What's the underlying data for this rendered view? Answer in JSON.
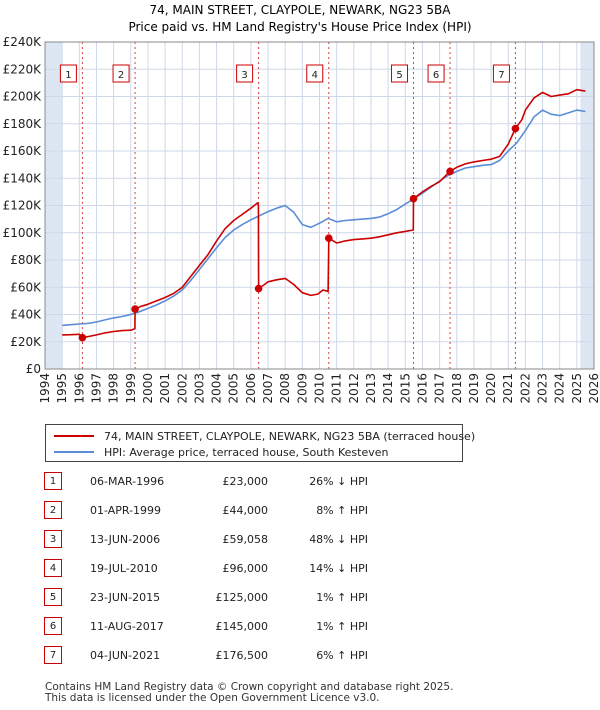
{
  "title": {
    "line1": "74, MAIN STREET, CLAYPOLE, NEWARK, NG23 5BA",
    "line2": "Price paid vs. HM Land Registry's House Price Index (HPI)"
  },
  "colors": {
    "price_paid": "#cc0000",
    "hpi": "#5b8dd6",
    "shade": "#dde7f3",
    "grid": "#cfd8e8",
    "marker_box": "#cc0000"
  },
  "chart_data": {
    "type": "line",
    "x_range": [
      1994,
      2026
    ],
    "ylim": [
      0,
      240000
    ],
    "y_ticks": [
      0,
      20000,
      40000,
      60000,
      80000,
      100000,
      120000,
      140000,
      160000,
      180000,
      200000,
      220000,
      240000
    ],
    "y_tick_labels": [
      "£0",
      "£20K",
      "£40K",
      "£60K",
      "£80K",
      "£100K",
      "£120K",
      "£140K",
      "£160K",
      "£180K",
      "£200K",
      "£220K",
      "£240K"
    ],
    "x_ticks": [
      1994,
      1995,
      1996,
      1997,
      1998,
      1999,
      2000,
      2001,
      2002,
      2003,
      2004,
      2005,
      2006,
      2007,
      2008,
      2009,
      2010,
      2011,
      2012,
      2013,
      2014,
      2015,
      2016,
      2017,
      2018,
      2019,
      2020,
      2021,
      2022,
      2023,
      2024,
      2025,
      2026
    ],
    "shaded_ranges": [
      [
        1994,
        1995
      ],
      [
        2025.2,
        2026
      ]
    ],
    "series": [
      {
        "name": "74, MAIN STREET, CLAYPOLE, NEWARK, NG23 5BA (terraced house)",
        "color": "#cc0000",
        "points": [
          [
            1995.0,
            25000
          ],
          [
            1995.5,
            25200
          ],
          [
            1996.0,
            25500
          ],
          [
            1996.18,
            23000
          ],
          [
            1996.5,
            23800
          ],
          [
            1997.0,
            25000
          ],
          [
            1997.5,
            26500
          ],
          [
            1998.0,
            27500
          ],
          [
            1998.5,
            28200
          ],
          [
            1999.0,
            28500
          ],
          [
            1999.24,
            29500
          ],
          [
            1999.25,
            44000
          ],
          [
            1999.6,
            46000
          ],
          [
            2000.0,
            47500
          ],
          [
            2000.5,
            50000
          ],
          [
            2001.0,
            52500
          ],
          [
            2001.5,
            55500
          ],
          [
            2002.0,
            60000
          ],
          [
            2002.5,
            68000
          ],
          [
            2003.0,
            76000
          ],
          [
            2003.5,
            84000
          ],
          [
            2004.0,
            94000
          ],
          [
            2004.5,
            103000
          ],
          [
            2005.0,
            109000
          ],
          [
            2005.5,
            113500
          ],
          [
            2006.0,
            118000
          ],
          [
            2006.4,
            122000
          ],
          [
            2006.44,
            120000
          ],
          [
            2006.45,
            59058
          ],
          [
            2006.8,
            62000
          ],
          [
            2007.0,
            64000
          ],
          [
            2007.5,
            65500
          ],
          [
            2008.0,
            66500
          ],
          [
            2008.5,
            62000
          ],
          [
            2009.0,
            56000
          ],
          [
            2009.5,
            54000
          ],
          [
            2009.9,
            55000
          ],
          [
            2010.2,
            58000
          ],
          [
            2010.5,
            57000
          ],
          [
            2010.54,
            96000
          ],
          [
            2011.0,
            92500
          ],
          [
            2011.5,
            94000
          ],
          [
            2012.0,
            95000
          ],
          [
            2012.5,
            95500
          ],
          [
            2013.0,
            96000
          ],
          [
            2013.5,
            97000
          ],
          [
            2014.0,
            98500
          ],
          [
            2014.5,
            100000
          ],
          [
            2015.0,
            101000
          ],
          [
            2015.47,
            102000
          ],
          [
            2015.48,
            125000
          ],
          [
            2016.0,
            130000
          ],
          [
            2016.5,
            134000
          ],
          [
            2017.0,
            137500
          ],
          [
            2017.6,
            145000
          ],
          [
            2018.0,
            148000
          ],
          [
            2018.5,
            150500
          ],
          [
            2019.0,
            152000
          ],
          [
            2019.5,
            153000
          ],
          [
            2020.0,
            154000
          ],
          [
            2020.5,
            156000
          ],
          [
            2021.0,
            165000
          ],
          [
            2021.42,
            176500
          ],
          [
            2021.8,
            183000
          ],
          [
            2022.0,
            190000
          ],
          [
            2022.5,
            199000
          ],
          [
            2023.0,
            203000
          ],
          [
            2023.5,
            200000
          ],
          [
            2024.0,
            201000
          ],
          [
            2024.5,
            202000
          ],
          [
            2025.0,
            205000
          ],
          [
            2025.5,
            204000
          ]
        ]
      },
      {
        "name": "HPI: Average price, terraced house, South Kesteven",
        "color": "#5b8dd6",
        "points": [
          [
            1995.0,
            32000
          ],
          [
            1995.5,
            32500
          ],
          [
            1996.0,
            33000
          ],
          [
            1996.5,
            33500
          ],
          [
            1997.0,
            34500
          ],
          [
            1997.5,
            36000
          ],
          [
            1998.0,
            37500
          ],
          [
            1998.5,
            38500
          ],
          [
            1999.0,
            40000
          ],
          [
            1999.5,
            42000
          ],
          [
            2000.0,
            44500
          ],
          [
            2000.5,
            47000
          ],
          [
            2001.0,
            50000
          ],
          [
            2001.5,
            53500
          ],
          [
            2002.0,
            58000
          ],
          [
            2002.5,
            65000
          ],
          [
            2003.0,
            73000
          ],
          [
            2003.5,
            81000
          ],
          [
            2004.0,
            89000
          ],
          [
            2004.5,
            96500
          ],
          [
            2005.0,
            102000
          ],
          [
            2005.5,
            106000
          ],
          [
            2006.0,
            109500
          ],
          [
            2006.5,
            112500
          ],
          [
            2007.0,
            115500
          ],
          [
            2007.5,
            118000
          ],
          [
            2008.0,
            120000
          ],
          [
            2008.5,
            115000
          ],
          [
            2009.0,
            106000
          ],
          [
            2009.5,
            104000
          ],
          [
            2010.0,
            107000
          ],
          [
            2010.5,
            110500
          ],
          [
            2011.0,
            108000
          ],
          [
            2011.5,
            109000
          ],
          [
            2012.0,
            109500
          ],
          [
            2012.5,
            110000
          ],
          [
            2013.0,
            110500
          ],
          [
            2013.5,
            111500
          ],
          [
            2014.0,
            114000
          ],
          [
            2014.5,
            117000
          ],
          [
            2015.0,
            121000
          ],
          [
            2015.5,
            125000
          ],
          [
            2016.0,
            129000
          ],
          [
            2016.5,
            133500
          ],
          [
            2017.0,
            138000
          ],
          [
            2017.5,
            142000
          ],
          [
            2018.0,
            145000
          ],
          [
            2018.5,
            147500
          ],
          [
            2019.0,
            148500
          ],
          [
            2019.5,
            149500
          ],
          [
            2020.0,
            150000
          ],
          [
            2020.5,
            153000
          ],
          [
            2021.0,
            160000
          ],
          [
            2021.5,
            166000
          ],
          [
            2022.0,
            175000
          ],
          [
            2022.5,
            185000
          ],
          [
            2023.0,
            190000
          ],
          [
            2023.5,
            187000
          ],
          [
            2024.0,
            186000
          ],
          [
            2024.5,
            188000
          ],
          [
            2025.0,
            190000
          ],
          [
            2025.5,
            189000
          ]
        ]
      }
    ],
    "sales": [
      {
        "label": "1",
        "x": 1996.18,
        "price": 23000
      },
      {
        "label": "2",
        "x": 1999.25,
        "price": 44000
      },
      {
        "label": "3",
        "x": 2006.45,
        "price": 59058
      },
      {
        "label": "4",
        "x": 2010.54,
        "price": 96000
      },
      {
        "label": "5",
        "x": 2015.48,
        "price": 125000
      },
      {
        "label": "6",
        "x": 2017.61,
        "price": 145000
      },
      {
        "label": "7",
        "x": 2021.42,
        "price": 176500
      }
    ]
  },
  "legend": {
    "price_paid": "74, MAIN STREET, CLAYPOLE, NEWARK, NG23 5BA (terraced house)",
    "hpi": "HPI: Average price, terraced house, South Kesteven"
  },
  "table": [
    {
      "num": "1",
      "date": "06-MAR-1996",
      "price": "£23,000",
      "hpi": "26% ↓ HPI"
    },
    {
      "num": "2",
      "date": "01-APR-1999",
      "price": "£44,000",
      "hpi": "8% ↑ HPI"
    },
    {
      "num": "3",
      "date": "13-JUN-2006",
      "price": "£59,058",
      "hpi": "48% ↓ HPI"
    },
    {
      "num": "4",
      "date": "19-JUL-2010",
      "price": "£96,000",
      "hpi": "14% ↓ HPI"
    },
    {
      "num": "5",
      "date": "23-JUN-2015",
      "price": "£125,000",
      "hpi": "1% ↑ HPI"
    },
    {
      "num": "6",
      "date": "11-AUG-2017",
      "price": "£145,000",
      "hpi": "1% ↑ HPI"
    },
    {
      "num": "7",
      "date": "04-JUN-2021",
      "price": "£176,500",
      "hpi": "6% ↑ HPI"
    }
  ],
  "footer": {
    "line1": "Contains HM Land Registry data © Crown copyright and database right 2025.",
    "line2": "This data is licensed under the Open Government Licence v3.0."
  }
}
